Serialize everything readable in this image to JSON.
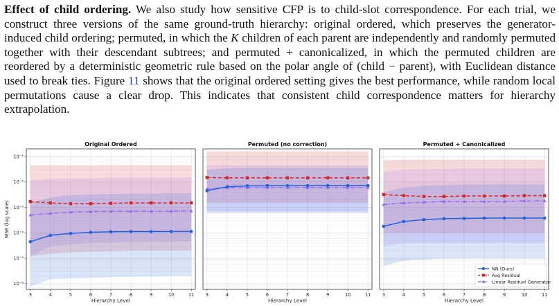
{
  "paragraph": {
    "heading": "Effect of child ordering.",
    "s1": " We also study how sensitive CFP is to child-slot correspondence. For each trial, we construct three versions of the same ground-truth hierarchy: original ordered, which preserves the generator-induced child ordering; permuted, in which the ",
    "var_k": "K",
    "s2": " children of each parent are independently and randomly permuted together with their descendant subtrees; and permuted + canonicalized, in which the permuted children are reordered by a deterministic geometric rule based on the polar angle of ",
    "math_expr": "(child − parent)",
    "s3": ", with Euclidean distance used to break ties. Figure ",
    "fig_ref": "11",
    "s4": " shows that the original ordered setting gives the best performance, while random local permutations cause a clear drop. This indicates that consistent child correspondence matters for hierarchy extrapolation."
  },
  "colors": {
    "nn": "#1f5fe0",
    "avg": "#d62728",
    "lin": "#9467f0"
  },
  "chart_data": {
    "type": "line",
    "y_scale": "log",
    "ylabel": "MSE (log scale)",
    "xlabel": "Hierarchy Level",
    "x_ticks": [
      3,
      4,
      5,
      6,
      7,
      8,
      9,
      10,
      11
    ],
    "y_ticks": [
      {
        "value": 1e-06,
        "label": "10⁻⁶"
      },
      {
        "value": 1e-05,
        "label": "10⁻⁵"
      },
      {
        "value": 0.0001,
        "label": "10⁻⁴"
      },
      {
        "value": 0.001,
        "label": "10⁻³"
      },
      {
        "value": 0.01,
        "label": "10⁻²"
      },
      {
        "value": 0.1,
        "label": "10⁻¹"
      }
    ],
    "xlim": [
      2.8,
      11.2
    ],
    "ylim": [
      6e-07,
      0.2
    ],
    "grid": true,
    "legend": {
      "placement": "bottom-right of third panel",
      "entries": [
        "NN (Ours)",
        "Avg Residual",
        "Linear Residual Generator"
      ]
    },
    "panels": [
      {
        "title": "Original Ordered",
        "series": [
          {
            "name": "NN (Ours)",
            "values": [
              4.5e-05,
              8e-05,
              9.5e-05,
              0.000105,
              0.00011,
              0.000112,
              0.000112,
              0.000113,
              0.000113
            ],
            "band_low": [
              8e-07,
              1.5e-06,
              1.6e-06,
              1.7e-06,
              1.8e-06,
              1.9e-06,
              1.9e-06,
              2e-06,
              2e-06
            ],
            "band_high": [
              0.0015,
              0.0025,
              0.003,
              0.0032,
              0.0034,
              0.0035,
              0.0035,
              0.0036,
              0.0036
            ]
          },
          {
            "name": "Avg Residual",
            "values": [
              0.0017,
              0.0015,
              0.0014,
              0.0014,
              0.00145,
              0.0015,
              0.0015,
              0.0015,
              0.0015
            ],
            "band_low": [
              1.2e-05,
              1.5e-05,
              1.7e-05,
              1.8e-05,
              1.9e-05,
              2e-05,
              2e-05,
              2e-05,
              2e-05
            ],
            "band_high": [
              0.045,
              0.045,
              0.045,
              0.045,
              0.046,
              0.046,
              0.046,
              0.046,
              0.046
            ]
          },
          {
            "name": "Linear Residual Generator",
            "values": [
              0.0005,
              0.00058,
              0.00065,
              0.00068,
              0.0007,
              0.0007,
              0.0007,
              0.00071,
              0.00072
            ],
            "band_low": [
              1.2e-05,
              3e-05,
              3.5e-05,
              4e-05,
              4.2e-05,
              4.4e-05,
              4.5e-05,
              4.5e-05,
              4.6e-05
            ],
            "band_high": [
              0.012,
              0.013,
              0.014,
              0.014,
              0.015,
              0.015,
              0.015,
              0.015,
              0.015
            ]
          }
        ]
      },
      {
        "title": "Permuted (no correction)",
        "series": [
          {
            "name": "NN (Ours)",
            "values": [
              0.0045,
              0.0065,
              0.007,
              0.0071,
              0.0071,
              0.0071,
              0.0072,
              0.0072,
              0.0072
            ],
            "band_low": [
              0.0006,
              0.0006,
              0.0006,
              0.0006,
              0.0006,
              0.0006,
              0.0006,
              0.0006,
              0.0006
            ],
            "band_high": [
              0.03,
              0.035,
              0.036,
              0.036,
              0.036,
              0.036,
              0.036,
              0.036,
              0.036
            ]
          },
          {
            "name": "Avg Residual",
            "values": [
              0.015,
              0.0145,
              0.0145,
              0.0145,
              0.0145,
              0.0145,
              0.0145,
              0.0145,
              0.0145
            ],
            "band_low": [
              0.0015,
              0.0015,
              0.0015,
              0.0015,
              0.0015,
              0.0015,
              0.0015,
              0.0015,
              0.0015
            ],
            "band_high": [
              0.16,
              0.16,
              0.16,
              0.16,
              0.16,
              0.16,
              0.16,
              0.16,
              0.16
            ]
          },
          {
            "name": "Linear Residual Generator",
            "values": [
              0.0052,
              0.006,
              0.006,
              0.006,
              0.006,
              0.006,
              0.006,
              0.006,
              0.006
            ],
            "band_low": [
              0.0007,
              0.0007,
              0.0007,
              0.0007,
              0.0007,
              0.0007,
              0.0007,
              0.0007,
              0.0007
            ],
            "band_high": [
              0.045,
              0.045,
              0.045,
              0.045,
              0.045,
              0.045,
              0.045,
              0.045,
              0.045
            ]
          }
        ]
      },
      {
        "title": "Permuted + Canonicalized",
        "series": [
          {
            "name": "NN (Ours)",
            "values": [
              0.00018,
              0.00028,
              0.00033,
              0.00036,
              0.00037,
              0.00038,
              0.00038,
              0.00038,
              0.00038
            ],
            "band_low": [
              5e-06,
              8e-06,
              9e-06,
              1e-05,
              1e-05,
              1e-05,
              1e-05,
              1e-05,
              1e-05
            ],
            "band_high": [
              0.004,
              0.006,
              0.007,
              0.0075,
              0.0078,
              0.008,
              0.008,
              0.008,
              0.008
            ]
          },
          {
            "name": "Avg Residual",
            "values": [
              0.0032,
              0.0029,
              0.0027,
              0.0027,
              0.0028,
              0.0028,
              0.0028,
              0.0029,
              0.0029
            ],
            "band_low": [
              0.0001,
              0.0001,
              0.0001,
              0.0001,
              0.0001,
              0.0001,
              0.0001,
              0.0001,
              0.0001
            ],
            "band_high": [
              0.07,
              0.075,
              0.075,
              0.075,
              0.075,
              0.075,
              0.075,
              0.075,
              0.075
            ]
          },
          {
            "name": "Linear Residual Generator",
            "values": [
              0.0013,
              0.0015,
              0.0016,
              0.0017,
              0.0017,
              0.0017,
              0.0017,
              0.0018,
              0.0018
            ],
            "band_low": [
              3e-05,
              4e-05,
              4e-05,
              4e-05,
              4e-05,
              4e-05,
              4e-05,
              4e-05,
              4e-05
            ],
            "band_high": [
              0.025,
              0.03,
              0.032,
              0.033,
              0.034,
              0.034,
              0.034,
              0.035,
              0.035
            ]
          }
        ]
      }
    ]
  }
}
